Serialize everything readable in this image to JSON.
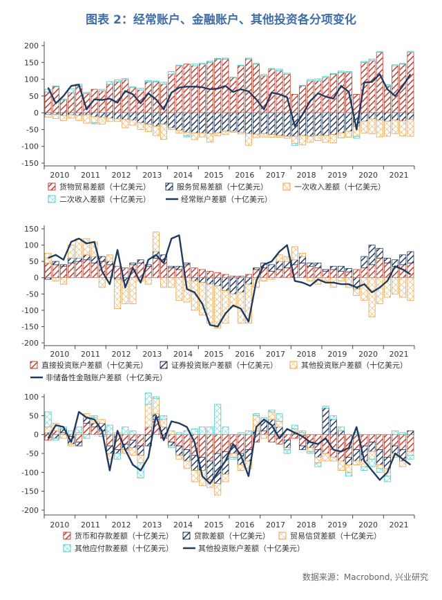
{
  "title": "图表 2：经常账户、金融账户、其他投资各分项变化",
  "source": "数据来源：Macrobond, 兴业研究",
  "colors": {
    "red": "#c0392b",
    "navy": "#1f3458",
    "orange": "#e8a24a",
    "cyan": "#49c8c8",
    "line": "#1f3a5f"
  },
  "chart_data": [
    {
      "type": "bar",
      "stacked": true,
      "pattern": "hatched",
      "ylim": [
        -150,
        200
      ],
      "yticks": [
        -150,
        -100,
        -50,
        0,
        50,
        100,
        150,
        200
      ],
      "xticks": [
        "2010",
        "2011",
        "2012",
        "2013",
        "2014",
        "2015",
        "2016",
        "2017",
        "2018",
        "2019",
        "2020",
        "2021"
      ],
      "quarters": 48,
      "grid": false,
      "legend_position": "bottom",
      "series": [
        {
          "name": "货物贸易差额（十亿美元）",
          "key": "red",
          "kind": "bar",
          "values": [
            62,
            78,
            38,
            60,
            80,
            57,
            70,
            65,
            85,
            92,
            98,
            75,
            68,
            92,
            92,
            85,
            115,
            140,
            145,
            140,
            145,
            150,
            160,
            160,
            105,
            140,
            160,
            145,
            110,
            130,
            125,
            115,
            55,
            80,
            95,
            95,
            105,
            115,
            120,
            120,
            55,
            150,
            155,
            180,
            80,
            140,
            145,
            180
          ]
        },
        {
          "name": "服务贸易差额（十亿美元）",
          "key": "navy",
          "kind": "bar",
          "values": [
            -5,
            -5,
            -8,
            -6,
            -8,
            -6,
            -12,
            -14,
            -16,
            -18,
            -20,
            -22,
            -30,
            -34,
            -40,
            -34,
            -45,
            -52,
            -58,
            -60,
            -60,
            -62,
            -60,
            -55,
            -55,
            -58,
            -62,
            -64,
            -62,
            -65,
            -68,
            -70,
            -70,
            -68,
            -70,
            -68,
            -68,
            -65,
            -60,
            -55,
            -40,
            -25,
            -18,
            -22,
            -25,
            -22,
            -24,
            -20
          ]
        },
        {
          "name": "一次收入差额（十亿美元）",
          "key": "orange",
          "kind": "bar",
          "values": [
            -8,
            -12,
            -15,
            -10,
            -15,
            -25,
            -18,
            -20,
            -10,
            -8,
            -25,
            -15,
            -20,
            -22,
            -28,
            -45,
            -5,
            -8,
            -10,
            -20,
            -12,
            -25,
            -8,
            -10,
            -3,
            -5,
            -35,
            -10,
            -10,
            -8,
            -5,
            -6,
            -22,
            -28,
            -18,
            -15,
            -20,
            -25,
            -15,
            -18,
            -30,
            -35,
            -45,
            -50,
            -45,
            -40,
            -45,
            -50
          ]
        },
        {
          "name": "二次收入差额（十亿美元）",
          "key": "cyan",
          "kind": "bar",
          "values": [
            8,
            2,
            3,
            12,
            5,
            4,
            -3,
            5,
            8,
            6,
            4,
            3,
            5,
            4,
            3,
            6,
            8,
            2,
            -4,
            5,
            3,
            4,
            2,
            3,
            1,
            2,
            3,
            2,
            4,
            2,
            5,
            3,
            -5,
            2,
            4,
            6,
            3,
            2,
            4,
            3,
            -6,
            3,
            5,
            2,
            4,
            3,
            2,
            3
          ]
        },
        {
          "name": "经常账户差额（十亿美元）",
          "key": "line",
          "kind": "line",
          "values": [
            75,
            28,
            50,
            80,
            84,
            10,
            40,
            38,
            42,
            30,
            65,
            55,
            28,
            58,
            40,
            10,
            60,
            75,
            78,
            78,
            76,
            70,
            72,
            80,
            62,
            70,
            64,
            40,
            10,
            60,
            55,
            46,
            -40,
            -5,
            35,
            58,
            48,
            42,
            80,
            62,
            -50,
            90,
            92,
            115,
            70,
            50,
            80,
            115
          ]
        }
      ]
    },
    {
      "type": "bar",
      "stacked": true,
      "pattern": "hatched",
      "ylim": [
        -200,
        150
      ],
      "yticks": [
        -200,
        -150,
        -100,
        -50,
        0,
        50,
        100,
        150
      ],
      "xticks": [
        "2010",
        "2011",
        "2012",
        "2013",
        "2014",
        "2015",
        "2016",
        "2017",
        "2018",
        "2019",
        "2020",
        "2021"
      ],
      "quarters": 48,
      "grid": false,
      "legend_position": "bottom",
      "series": [
        {
          "name": "直接投资账户差额（十亿美元）",
          "key": "red",
          "kind": "bar",
          "values": [
            45,
            40,
            35,
            45,
            50,
            55,
            45,
            50,
            40,
            35,
            30,
            40,
            45,
            35,
            60,
            55,
            30,
            25,
            40,
            30,
            25,
            20,
            15,
            10,
            5,
            5,
            10,
            25,
            30,
            20,
            25,
            30,
            40,
            45,
            35,
            30,
            20,
            25,
            20,
            18,
            25,
            30,
            40,
            60,
            45,
            35,
            40,
            45
          ]
        },
        {
          "name": "证券投资账户差额（十亿美元）",
          "key": "navy",
          "kind": "bar",
          "values": [
            -5,
            10,
            5,
            15,
            10,
            15,
            20,
            15,
            10,
            -5,
            -10,
            5,
            10,
            5,
            20,
            15,
            5,
            10,
            5,
            -10,
            -15,
            -20,
            -25,
            -40,
            -50,
            -45,
            -20,
            5,
            15,
            20,
            25,
            20,
            15,
            20,
            10,
            15,
            5,
            10,
            15,
            10,
            -35,
            35,
            60,
            30,
            15,
            20,
            30,
            35
          ]
        },
        {
          "name": "其他投资账户差额（十亿美元）",
          "key": "orange",
          "kind": "bar",
          "values": [
            30,
            -10,
            -20,
            40,
            60,
            50,
            45,
            -30,
            20,
            -90,
            -70,
            -80,
            -10,
            -20,
            60,
            -30,
            -30,
            -70,
            -75,
            -90,
            -100,
            -120,
            -130,
            -100,
            -40,
            -95,
            -120,
            -30,
            -10,
            -5,
            20,
            15,
            40,
            10,
            -10,
            -20,
            -10,
            -30,
            -10,
            -30,
            -20,
            -70,
            -120,
            -80,
            -60,
            -50,
            -60,
            -70
          ]
        },
        {
          "name": "非储备性金融账户差额（十亿美元）",
          "key": "line",
          "kind": "line",
          "values": [
            60,
            70,
            55,
            110,
            120,
            105,
            110,
            20,
            -20,
            85,
            -30,
            30,
            -15,
            55,
            70,
            45,
            120,
            130,
            -35,
            -45,
            -80,
            -145,
            -150,
            -110,
            -85,
            -95,
            -135,
            -10,
            40,
            50,
            80,
            100,
            -10,
            -15,
            -25,
            -5,
            -15,
            -15,
            -20,
            -20,
            -30,
            -20,
            -45,
            -30,
            -10,
            35,
            25,
            10
          ]
        }
      ]
    },
    {
      "type": "bar",
      "stacked": true,
      "pattern": "hatched",
      "ylim": [
        -200,
        100
      ],
      "yticks": [
        -200,
        -150,
        -100,
        -50,
        0,
        50,
        100
      ],
      "xticks": [
        "2010",
        "2011",
        "2012",
        "2013",
        "2014",
        "2015",
        "2016",
        "2017",
        "2018",
        "2019",
        "2020",
        "2021"
      ],
      "quarters": 48,
      "grid": false,
      "legend_position": "bottom",
      "series": [
        {
          "name": "货币和存款差额（十亿美元）",
          "key": "red",
          "kind": "bar",
          "values": [
            -15,
            10,
            5,
            -5,
            -20,
            30,
            20,
            10,
            -30,
            -40,
            -25,
            -15,
            -30,
            20,
            40,
            -10,
            -20,
            -30,
            -40,
            -55,
            -60,
            -70,
            -50,
            -45,
            -30,
            -50,
            -40,
            -20,
            10,
            -20,
            -25,
            -15,
            -10,
            -30,
            -20,
            -40,
            -50,
            -60,
            -70,
            -60,
            -40,
            -30,
            -20,
            -40,
            -60,
            -30,
            -40,
            -45
          ]
        },
        {
          "name": "贷款差额（十亿美元）",
          "key": "navy",
          "kind": "bar",
          "values": [
            5,
            -10,
            10,
            -20,
            -10,
            15,
            10,
            20,
            -20,
            -10,
            -15,
            -20,
            -25,
            -30,
            15,
            20,
            -10,
            -25,
            -30,
            -40,
            -35,
            -50,
            -80,
            -60,
            -20,
            -30,
            -30,
            10,
            25,
            40,
            20,
            -20,
            5,
            -10,
            -15,
            -20,
            70,
            40,
            10,
            -20,
            -30,
            -40,
            -25,
            -40,
            -30,
            -20,
            -30,
            10
          ]
        },
        {
          "name": "贸易信贷差额（十亿美元）",
          "key": "orange",
          "kind": "bar",
          "values": [
            15,
            20,
            -10,
            -5,
            5,
            10,
            15,
            10,
            -15,
            5,
            -10,
            -20,
            -20,
            60,
            40,
            20,
            10,
            -10,
            -20,
            -30,
            -40,
            -20,
            -30,
            -20,
            -10,
            -15,
            -20,
            40,
            -10,
            20,
            15,
            -5,
            10,
            5,
            -10,
            -15,
            -20,
            -10,
            -25,
            -20,
            -10,
            -15,
            -20,
            -10,
            -20,
            -10,
            -15,
            -10
          ]
        },
        {
          "name": "其他应付款差额（十亿美元）",
          "key": "cyan",
          "kind": "bar",
          "values": [
            40,
            -5,
            5,
            10,
            15,
            -10,
            5,
            -5,
            25,
            -15,
            20,
            10,
            -40,
            30,
            5,
            10,
            -5,
            5,
            10,
            15,
            20,
            20,
            80,
            20,
            -5,
            5,
            10,
            5,
            10,
            5,
            20,
            -10,
            10,
            5,
            -5,
            -10,
            5,
            10,
            10,
            -10,
            5,
            -10,
            -20,
            -10,
            -15,
            10,
            5,
            -10
          ]
        },
        {
          "name": "其他投资账户差额（十亿美元）",
          "key": "line",
          "kind": "line",
          "values": [
            -10,
            25,
            20,
            -20,
            60,
            45,
            40,
            10,
            -95,
            10,
            -40,
            -80,
            -95,
            -60,
            50,
            -15,
            35,
            30,
            20,
            -20,
            -110,
            -130,
            -100,
            -70,
            -25,
            -55,
            -110,
            20,
            40,
            25,
            -10,
            15,
            5,
            -5,
            -20,
            -25,
            -10,
            -40,
            -45,
            -35,
            20,
            -70,
            -95,
            -120,
            -100,
            -50,
            -65,
            -80
          ]
        }
      ]
    }
  ]
}
